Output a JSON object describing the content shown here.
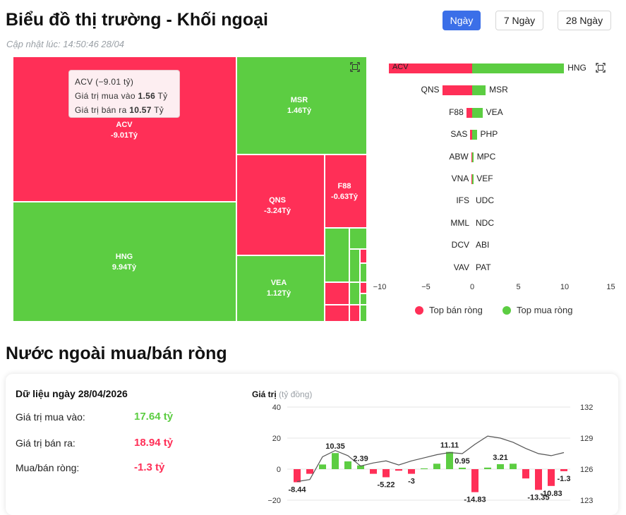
{
  "header": {
    "title": "Biểu đồ thị trường - Khối ngoại",
    "updated": "Cập nhật lúc: 14:50:46 28/04",
    "ranges": [
      "Ngày",
      "7 Ngày",
      "28 Ngày"
    ],
    "active_range": "Ngày"
  },
  "colors": {
    "sell": "#ff2f57",
    "buy": "#5ccd42",
    "active_button": "#3b6fe8"
  },
  "treemap": {
    "tiles": [
      {
        "ticker": "ACV",
        "value": "-9.01Tỷ"
      },
      {
        "ticker": "HNG",
        "value": "9.94Tỷ"
      },
      {
        "ticker": "MSR",
        "value": "1.46Tỷ"
      },
      {
        "ticker": "QNS",
        "value": "-3.24Tỷ"
      },
      {
        "ticker": "F88",
        "value": "-0.63Tỷ"
      },
      {
        "ticker": "VEA",
        "value": "1.12Tỷ"
      }
    ],
    "tooltip": {
      "title": "ACV (−9.01 tỷ)",
      "buy_label": "Giá trị mua vào",
      "buy_value": "1.56",
      "buy_unit": "Tỷ",
      "sell_label": "Giá trị bán ra",
      "sell_value": "10.57",
      "sell_unit": "Tỷ"
    }
  },
  "hbar": {
    "rows": [
      {
        "sell": "ACV",
        "buy": "HNG",
        "sell_value": -9.01,
        "buy_value": 9.94
      },
      {
        "sell": "QNS",
        "buy": "MSR",
        "sell_value": -3.24,
        "buy_value": 1.46
      },
      {
        "sell": "F88",
        "buy": "VEA",
        "sell_value": -0.63,
        "buy_value": 1.12
      },
      {
        "sell": "SAS",
        "buy": "PHP",
        "sell_value": -0.2,
        "buy_value": 0.5
      },
      {
        "sell": "ABW",
        "buy": "MPC",
        "sell_value": -0.1,
        "buy_value": 0.12
      },
      {
        "sell": "VNA",
        "buy": "VEF",
        "sell_value": -0.05,
        "buy_value": 0.1
      },
      {
        "sell": "IFS",
        "buy": "UDC",
        "sell_value": 0,
        "buy_value": 0
      },
      {
        "sell": "MML",
        "buy": "NDC",
        "sell_value": 0,
        "buy_value": 0
      },
      {
        "sell": "DCV",
        "buy": "ABI",
        "sell_value": 0,
        "buy_value": 0
      },
      {
        "sell": "VAV",
        "buy": "PAT",
        "sell_value": 0,
        "buy_value": 0
      }
    ],
    "x_ticks": [
      "−10",
      "−5",
      "0",
      "5",
      "10",
      "15"
    ],
    "legend_sell": "Top bán ròng",
    "legend_buy": "Top mua ròng"
  },
  "net": {
    "section_title": "Nước ngoài mua/bán ròng",
    "date_title": "Dữ liệu ngày 28/04/2026",
    "buy_label": "Giá trị mua vào:",
    "buy_value": "17.64 tỷ",
    "sell_label": "Giá trị bán ra:",
    "sell_value": "18.94 tỷ",
    "net_label": "Mua/bán ròng:",
    "net_value": "-1.3 tỷ"
  },
  "chart_data": {
    "type": "bar",
    "ylabel": "Giá trị",
    "ylabel_unit": "(tỷ đồng)",
    "ylim": [
      -20,
      40
    ],
    "y_ticks": [
      "40",
      "20",
      "0",
      "−20"
    ],
    "y2_ticks": [
      "132",
      "129",
      "126",
      "123"
    ],
    "y2lim": [
      123,
      132
    ],
    "series": [
      {
        "values": [
          -8.44,
          -3,
          3,
          10.35,
          5,
          2.39,
          -3,
          -5.22,
          -1,
          -3,
          0.5,
          3.5,
          11.11,
          0.95,
          -14.83,
          1,
          3.21,
          3.5,
          -6,
          -13.35,
          -10.83,
          -1.3
        ]
      },
      {
        "values": [
          124.8,
          125,
          127.2,
          127.8,
          127.3,
          126.3,
          126.6,
          126.8,
          126.4,
          126.8,
          127.1,
          127.4,
          127.6,
          127.5,
          128.4,
          129.2,
          129,
          128.6,
          128,
          127.5,
          127.3,
          127.6
        ]
      }
    ],
    "bar_labels": [
      {
        "index": 0,
        "text": "-8.44"
      },
      {
        "index": 3,
        "text": "10.35"
      },
      {
        "index": 5,
        "text": "2.39"
      },
      {
        "index": 7,
        "text": "-5.22"
      },
      {
        "index": 9,
        "text": "-3"
      },
      {
        "index": 12,
        "text": "11.11"
      },
      {
        "index": 13,
        "text": "0.95"
      },
      {
        "index": 14,
        "text": "-14.83"
      },
      {
        "index": 16,
        "text": "3.21"
      },
      {
        "index": 19,
        "text": "-13.35"
      },
      {
        "index": 20,
        "text": "-10.83"
      },
      {
        "index": 21,
        "text": "-1.3"
      }
    ]
  }
}
